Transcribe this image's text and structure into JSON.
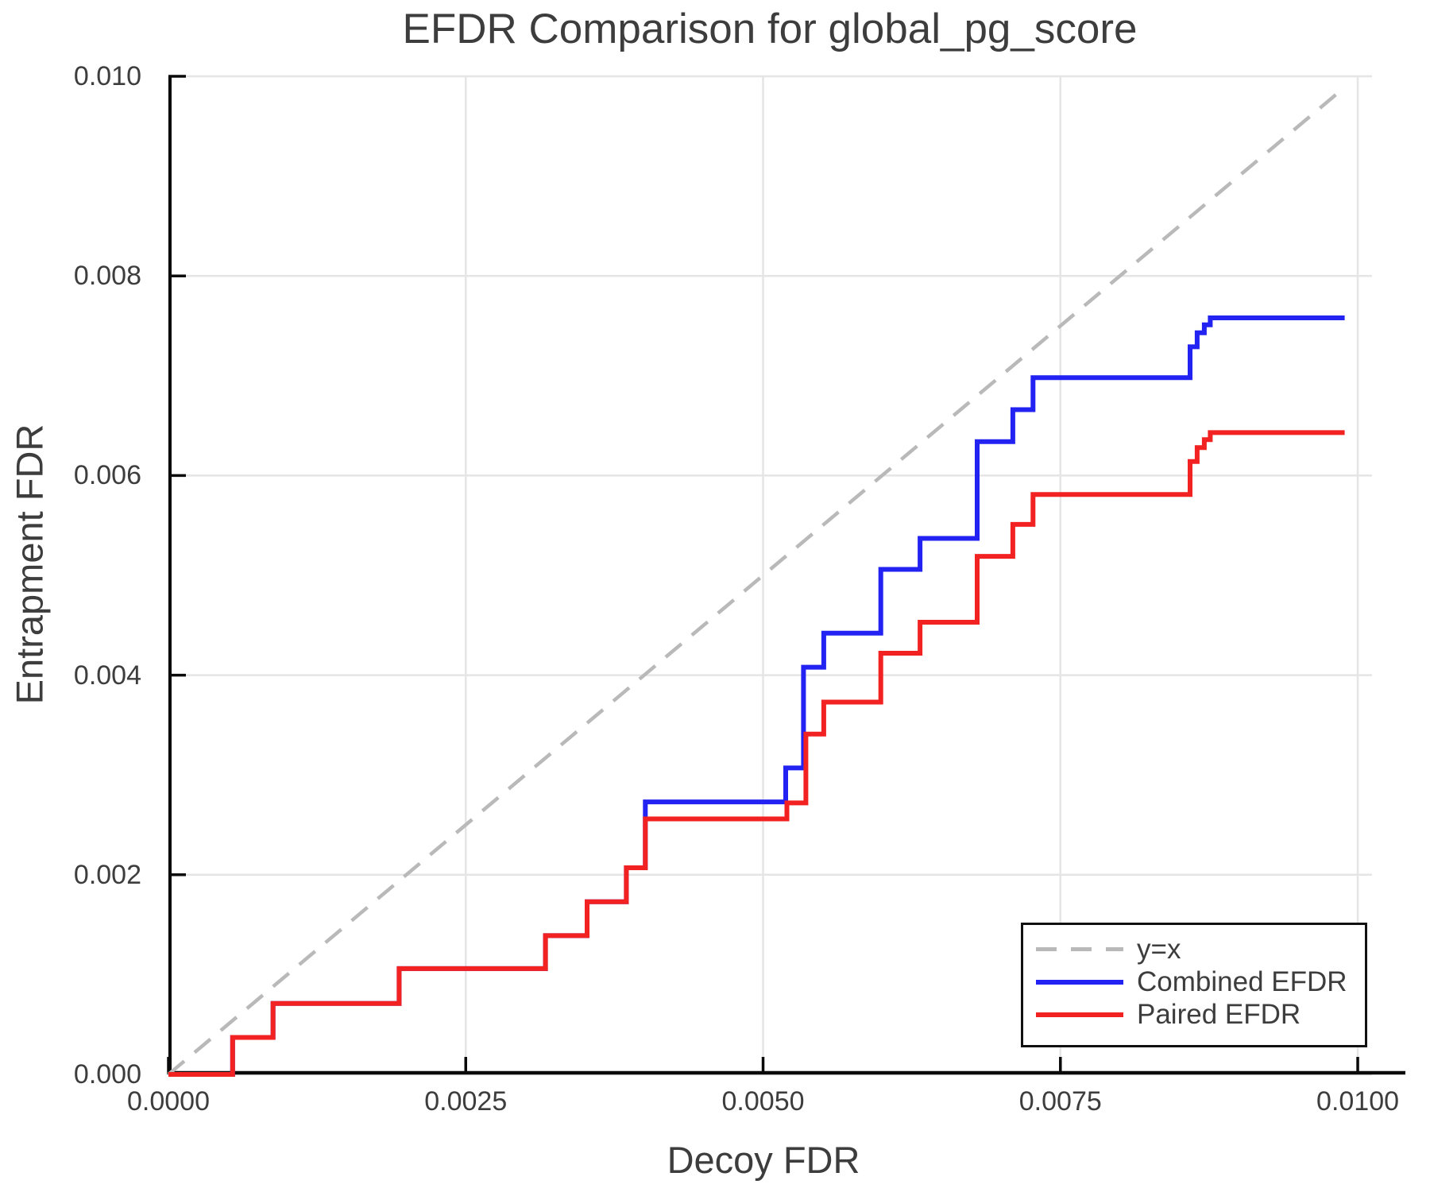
{
  "chart_data": {
    "type": "line",
    "title": "EFDR Comparison for global_pg_score",
    "xlabel": "Decoy FDR",
    "ylabel": "Entrapment FDR",
    "xlim": [
      0,
      0.01012
    ],
    "ylim": [
      0,
      0.01
    ],
    "grid": true,
    "legend_position": "bottom-right",
    "xticks": {
      "values": [
        0.0,
        0.0025,
        0.005,
        0.0075,
        0.01
      ],
      "labels": [
        "0.0000",
        "0.0025",
        "0.0050",
        "0.0075",
        "0.0100"
      ]
    },
    "yticks": {
      "values": [
        0.0,
        0.002,
        0.004,
        0.006,
        0.008,
        0.01
      ],
      "labels": [
        "0.000",
        "0.002",
        "0.004",
        "0.006",
        "0.008",
        "0.010"
      ]
    },
    "series": [
      {
        "name": "y=x",
        "color": "#b9b9b9",
        "style": "dashed",
        "step": false,
        "points": [
          [
            0.0,
            0.0
          ],
          [
            0.0099,
            0.0099
          ]
        ]
      },
      {
        "name": "Combined EFDR",
        "color": "#2222f2",
        "style": "solid",
        "step": true,
        "points": [
          [
            0.0,
            0.0
          ],
          [
            0.00054,
            0.00037
          ],
          [
            0.00088,
            0.00071
          ],
          [
            0.00194,
            0.00106
          ],
          [
            0.00317,
            0.00139
          ],
          [
            0.00352,
            0.00173
          ],
          [
            0.00385,
            0.00207
          ],
          [
            0.00401,
            0.00273
          ],
          [
            0.00519,
            0.00307
          ],
          [
            0.00534,
            0.00408
          ],
          [
            0.00551,
            0.00442
          ],
          [
            0.00599,
            0.00506
          ],
          [
            0.00632,
            0.00537
          ],
          [
            0.0068,
            0.00634
          ],
          [
            0.0071,
            0.00666
          ],
          [
            0.00727,
            0.00698
          ],
          [
            0.00859,
            0.00729
          ],
          [
            0.00865,
            0.00743
          ],
          [
            0.00871,
            0.00751
          ],
          [
            0.00876,
            0.00758
          ],
          [
            0.00989,
            0.00758
          ]
        ]
      },
      {
        "name": "Paired EFDR",
        "color": "#f22222",
        "style": "solid",
        "step": true,
        "points": [
          [
            0.0,
            0.0
          ],
          [
            0.00054,
            0.00037
          ],
          [
            0.00088,
            0.00071
          ],
          [
            0.00194,
            0.00106
          ],
          [
            0.00317,
            0.00139
          ],
          [
            0.00352,
            0.00173
          ],
          [
            0.00385,
            0.00207
          ],
          [
            0.00401,
            0.00256
          ],
          [
            0.0052,
            0.00272
          ],
          [
            0.00536,
            0.00341
          ],
          [
            0.00551,
            0.00373
          ],
          [
            0.00599,
            0.00422
          ],
          [
            0.00632,
            0.00453
          ],
          [
            0.0068,
            0.00519
          ],
          [
            0.0071,
            0.00551
          ],
          [
            0.00727,
            0.00581
          ],
          [
            0.00859,
            0.00614
          ],
          [
            0.00865,
            0.00628
          ],
          [
            0.00871,
            0.00636
          ],
          [
            0.00876,
            0.00643
          ],
          [
            0.00989,
            0.00643
          ]
        ]
      }
    ]
  },
  "colors": {
    "background": "#ffffff",
    "axis_text": "#3d3d3d",
    "spine": "#0a0a0a",
    "grid": "#e5e5e5",
    "legend_border": "#111111"
  }
}
